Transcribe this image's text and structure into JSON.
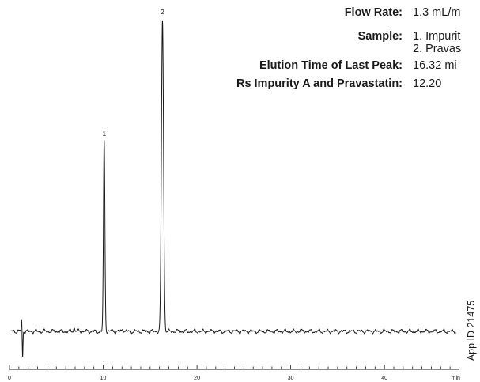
{
  "info": {
    "flow_rate_label": "Flow Rate:",
    "flow_rate_value": "1.3 mL/m",
    "sample_label": "Sample:",
    "sample_line1": "1. Impurit",
    "sample_line2": "2. Pravas",
    "elution_label": "Elution Time of Last Peak:",
    "elution_value": "16.32 mi",
    "rs_label": "Rs Impurity A and Pravastatin:",
    "rs_value": "12.20"
  },
  "app_id": "App ID 21475",
  "chart_data": {
    "type": "line",
    "title": "",
    "xlabel": "min",
    "ylabel": "",
    "xlim": [
      0,
      48
    ],
    "ylim": [
      -10,
      100
    ],
    "grid": false,
    "x_ticks": [
      {
        "value": 0,
        "label": "0"
      },
      {
        "value": 10,
        "label": "10"
      },
      {
        "value": 20,
        "label": "20"
      },
      {
        "value": 30,
        "label": "30"
      },
      {
        "value": 40,
        "label": "40"
      },
      {
        "value": 47.6,
        "label": "min"
      }
    ],
    "baseline": 0,
    "system_peak": {
      "x": 1.4,
      "height": -7.5
    },
    "peaks": [
      {
        "label": "1",
        "x": 10.1,
        "height": 56
      },
      {
        "label": "2",
        "x": 16.32,
        "height": 92
      }
    ],
    "color": "#1a1a1a"
  }
}
